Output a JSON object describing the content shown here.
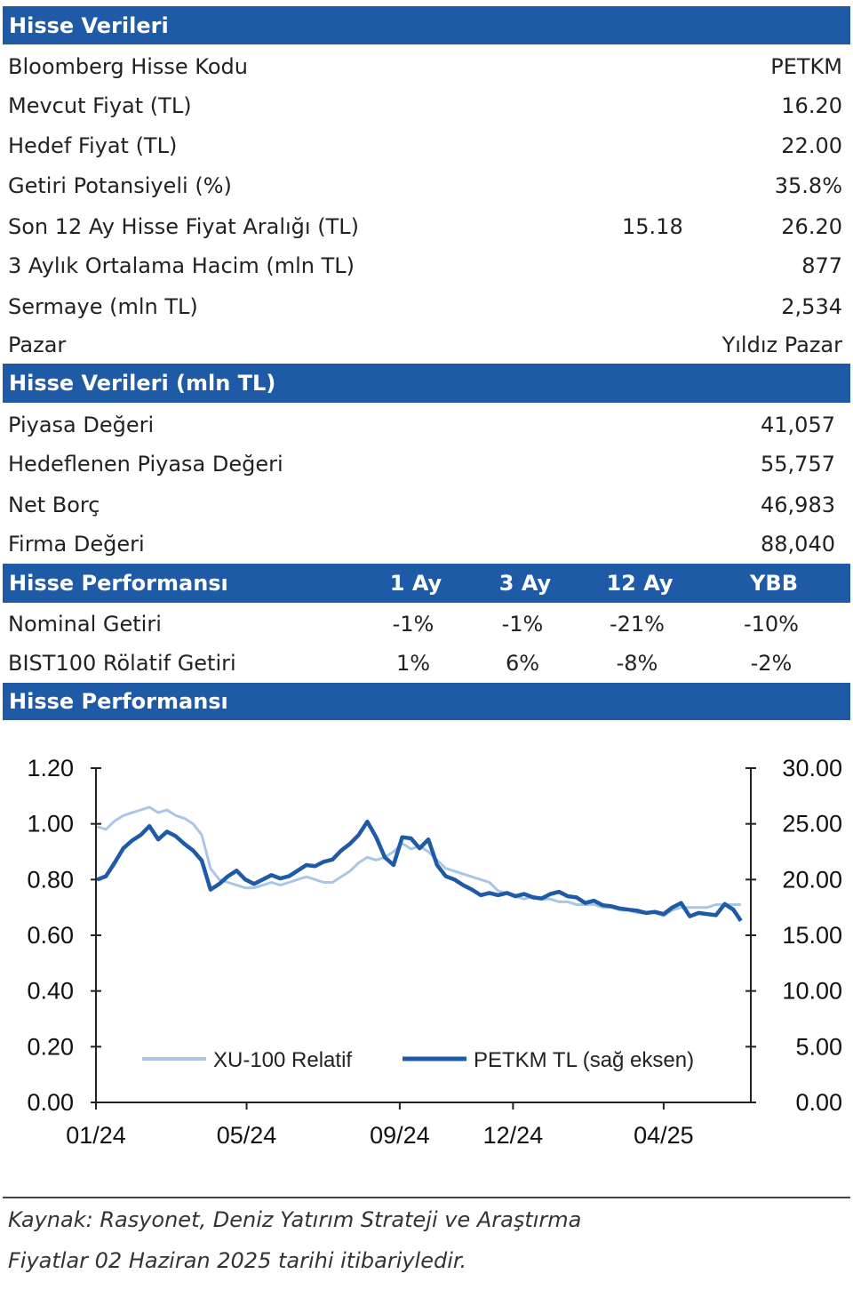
{
  "sections": {
    "stock_data_title": "Hisse Verileri",
    "market_data_title": "Hisse Verileri (mln TL)",
    "performance_title": "Hisse Performansı",
    "chart_title": "Hisse Performansı"
  },
  "stock_rows": [
    {
      "label": "Bloomberg Hisse Kodu",
      "value": "PETKM"
    },
    {
      "label": "Mevcut Fiyat (TL)",
      "value": "16.20"
    },
    {
      "label": "Hedef Fiyat (TL)",
      "value": "22.00"
    },
    {
      "label": "Getiri Potansiyeli (%)",
      "value": "35.8%"
    },
    {
      "label": "Son 12 Ay Hisse Fiyat Aralığı (TL)",
      "low": "15.18",
      "value": "26.20"
    },
    {
      "label": "3 Aylık Ortalama Hacim (mln TL)",
      "value": "877"
    },
    {
      "label": "Sermaye (mln TL)",
      "value": "2,534"
    },
    {
      "label": "Pazar",
      "value": "Yıldız Pazar"
    }
  ],
  "market_rows": [
    {
      "label": "Piyasa Değeri",
      "value": "41,057"
    },
    {
      "label": "Hedeflenen Piyasa Değeri",
      "value": "55,757"
    },
    {
      "label": "Net Borç",
      "value": "46,983"
    },
    {
      "label": "Firma Değeri",
      "value": "88,040"
    }
  ],
  "performance": {
    "columns": [
      "1 Ay",
      "3 Ay",
      "12 Ay",
      "YBB"
    ],
    "rows": [
      {
        "label": "Nominal Getiri",
        "values": [
          "-1%",
          "-1%",
          "-21%",
          "-10%"
        ]
      },
      {
        "label": "BIST100 Rölatif Getiri",
        "values": [
          "1%",
          "6%",
          "-8%",
          "-2%"
        ]
      }
    ]
  },
  "footer": {
    "source": "Kaynak: Rasyonet, Deniz Yatırım Strateji ve Araştırma",
    "date_note": "Fiyatlar 02 Haziran 2025 tarihi itibariyledir."
  },
  "chart_data": {
    "type": "line",
    "x_ticks": [
      "01/24",
      "05/24",
      "09/24",
      "12/24",
      "04/25"
    ],
    "y_left": {
      "min": 0,
      "max": 1.2,
      "ticks": [
        "0.00",
        "0.20",
        "0.40",
        "0.60",
        "0.80",
        "1.00",
        "1.20"
      ]
    },
    "y_right": {
      "min": 0,
      "max": 30,
      "ticks": [
        "0.00",
        "5.00",
        "10.00",
        "15.00",
        "20.00",
        "25.00",
        "30.00"
      ]
    },
    "legend_position": "bottom-inside",
    "grid": false,
    "series": [
      {
        "name": "XU-100 Relatif",
        "axis": "left",
        "color": "#a9c6e6",
        "x": [
          "2024-01-02",
          "2024-01-09",
          "2024-01-16",
          "2024-01-23",
          "2024-01-30",
          "2024-02-06",
          "2024-02-13",
          "2024-02-20",
          "2024-02-27",
          "2024-03-05",
          "2024-03-12",
          "2024-03-19",
          "2024-03-26",
          "2024-04-02",
          "2024-04-09",
          "2024-04-16",
          "2024-04-23",
          "2024-04-30",
          "2024-05-07",
          "2024-05-14",
          "2024-05-21",
          "2024-05-28",
          "2024-06-04",
          "2024-06-11",
          "2024-06-18",
          "2024-06-25",
          "2024-07-02",
          "2024-07-09",
          "2024-07-16",
          "2024-07-23",
          "2024-07-30",
          "2024-08-06",
          "2024-08-13",
          "2024-08-20",
          "2024-08-27",
          "2024-09-03",
          "2024-09-10",
          "2024-09-17",
          "2024-09-24",
          "2024-10-01",
          "2024-10-08",
          "2024-10-15",
          "2024-10-22",
          "2024-10-29",
          "2024-11-05",
          "2024-11-12",
          "2024-11-19",
          "2024-11-26",
          "2024-12-03",
          "2024-12-10",
          "2024-12-17",
          "2024-12-24",
          "2024-12-31",
          "2025-01-07",
          "2025-01-14",
          "2025-01-21",
          "2025-01-28",
          "2025-02-04",
          "2025-02-11",
          "2025-02-18",
          "2025-02-25",
          "2025-03-04",
          "2025-03-11",
          "2025-03-18",
          "2025-03-25",
          "2025-04-01",
          "2025-04-08",
          "2025-04-15",
          "2025-04-22",
          "2025-04-29",
          "2025-05-06",
          "2025-05-13",
          "2025-05-20",
          "2025-05-27",
          "2025-06-02"
        ],
        "values": [
          0.99,
          0.98,
          1.01,
          1.03,
          1.04,
          1.05,
          1.06,
          1.04,
          1.05,
          1.03,
          1.02,
          1.0,
          0.96,
          0.84,
          0.8,
          0.79,
          0.78,
          0.77,
          0.77,
          0.78,
          0.79,
          0.78,
          0.79,
          0.8,
          0.81,
          0.8,
          0.79,
          0.79,
          0.81,
          0.83,
          0.86,
          0.88,
          0.87,
          0.88,
          0.9,
          0.93,
          0.91,
          0.92,
          0.9,
          0.87,
          0.84,
          0.83,
          0.82,
          0.81,
          0.8,
          0.79,
          0.76,
          0.75,
          0.74,
          0.73,
          0.74,
          0.73,
          0.73,
          0.72,
          0.72,
          0.71,
          0.71,
          0.71,
          0.7,
          0.7,
          0.69,
          0.69,
          0.68,
          0.68,
          0.68,
          0.67,
          0.69,
          0.7,
          0.7,
          0.7,
          0.7,
          0.71,
          0.71,
          0.71,
          0.71
        ]
      },
      {
        "name": "PETKM TL (sağ eksen)",
        "axis": "right",
        "color": "#1f5aa6",
        "x": [
          "2024-01-02",
          "2024-01-09",
          "2024-01-16",
          "2024-01-23",
          "2024-01-30",
          "2024-02-06",
          "2024-02-13",
          "2024-02-20",
          "2024-02-27",
          "2024-03-05",
          "2024-03-12",
          "2024-03-19",
          "2024-03-26",
          "2024-04-02",
          "2024-04-09",
          "2024-04-16",
          "2024-04-23",
          "2024-04-30",
          "2024-05-07",
          "2024-05-14",
          "2024-05-21",
          "2024-05-28",
          "2024-06-04",
          "2024-06-11",
          "2024-06-18",
          "2024-06-25",
          "2024-07-02",
          "2024-07-09",
          "2024-07-16",
          "2024-07-23",
          "2024-07-30",
          "2024-08-06",
          "2024-08-13",
          "2024-08-20",
          "2024-08-27",
          "2024-09-03",
          "2024-09-10",
          "2024-09-17",
          "2024-09-24",
          "2024-10-01",
          "2024-10-08",
          "2024-10-15",
          "2024-10-22",
          "2024-10-29",
          "2024-11-05",
          "2024-11-12",
          "2024-11-19",
          "2024-11-26",
          "2024-12-03",
          "2024-12-10",
          "2024-12-17",
          "2024-12-24",
          "2024-12-31",
          "2025-01-07",
          "2025-01-14",
          "2025-01-21",
          "2025-01-28",
          "2025-02-04",
          "2025-02-11",
          "2025-02-18",
          "2025-02-25",
          "2025-03-04",
          "2025-03-11",
          "2025-03-18",
          "2025-03-25",
          "2025-04-01",
          "2025-04-08",
          "2025-04-15",
          "2025-04-22",
          "2025-04-29",
          "2025-05-06",
          "2025-05-13",
          "2025-05-20",
          "2025-05-27",
          "2025-06-02"
        ],
        "values": [
          20.0,
          20.3,
          21.5,
          22.8,
          23.5,
          24.0,
          24.8,
          23.6,
          24.3,
          23.9,
          23.2,
          22.6,
          21.7,
          19.1,
          19.6,
          20.3,
          20.8,
          20.0,
          19.6,
          20.0,
          20.4,
          20.1,
          20.3,
          20.8,
          21.3,
          21.2,
          21.6,
          21.8,
          22.6,
          23.2,
          24.0,
          25.2,
          23.8,
          22.0,
          21.3,
          23.8,
          23.7,
          22.8,
          23.6,
          21.3,
          20.3,
          20.0,
          19.5,
          19.1,
          18.6,
          18.8,
          18.6,
          18.8,
          18.5,
          18.7,
          18.4,
          18.3,
          18.7,
          18.9,
          18.5,
          18.4,
          17.9,
          18.1,
          17.7,
          17.6,
          17.4,
          17.3,
          17.2,
          17.0,
          17.1,
          16.9,
          17.5,
          17.9,
          16.7,
          17.0,
          16.9,
          16.8,
          17.8,
          17.3,
          16.3
        ]
      }
    ]
  }
}
